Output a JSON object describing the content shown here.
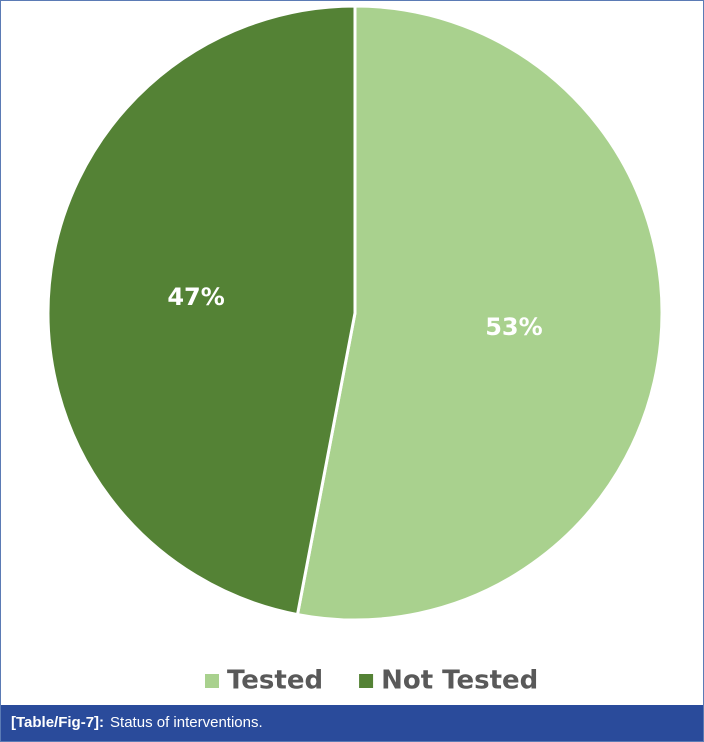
{
  "chart_data": {
    "type": "pie",
    "categories": [
      "Tested",
      "Not Tested"
    ],
    "values": [
      53,
      47
    ],
    "value_labels": [
      "53%",
      "47%"
    ],
    "colors": [
      "#a9d18e",
      "#548235"
    ],
    "legend": "bottom"
  },
  "caption": {
    "label": "[Table/Fig-7]:",
    "text": "Status of interventions."
  }
}
